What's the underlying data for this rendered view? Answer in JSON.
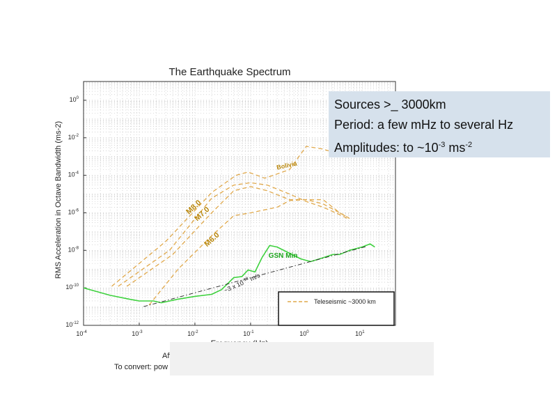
{
  "slide": {
    "callout": {
      "line1": "Sources >_ 3000km",
      "line2": "Period: a few mHz to several Hz",
      "line3_prefix": "Amplitudes:  to ~10",
      "line3_exp1": "-3",
      "line3_mid": " ms",
      "line3_exp2": "-2"
    },
    "note_line1": "Aft",
    "note_line2": "To convert: pow"
  },
  "chart_data": {
    "type": "line",
    "title": "The Earthquake Spectrum",
    "xlabel": "Frequency (Hz)",
    "ylabel": "RMS Acceleration in Octave Bandwidth (ms-2)",
    "x_scale": "log",
    "y_scale": "log",
    "xlim": [
      0.0001,
      40
    ],
    "ylim": [
      1e-12,
      10
    ],
    "x_ticks": [
      {
        "value": 0.0001,
        "base": "10",
        "exp": "-4"
      },
      {
        "value": 0.001,
        "base": "10",
        "exp": "-3"
      },
      {
        "value": 0.01,
        "base": "10",
        "exp": "-2"
      },
      {
        "value": 0.1,
        "base": "10",
        "exp": "-1"
      },
      {
        "value": 1,
        "base": "10",
        "exp": "0"
      },
      {
        "value": 10,
        "base": "10",
        "exp": "1"
      }
    ],
    "y_ticks": [
      {
        "value": 1,
        "base": "10",
        "exp": "0"
      },
      {
        "value": 0.01,
        "base": "10",
        "exp": "-2"
      },
      {
        "value": 0.0001,
        "base": "10",
        "exp": "-4"
      },
      {
        "value": 1e-06,
        "base": "10",
        "exp": "-6"
      },
      {
        "value": 1e-08,
        "base": "10",
        "exp": "-8"
      },
      {
        "value": 1e-10,
        "base": "10",
        "exp": "-10"
      },
      {
        "value": 1e-12,
        "base": "10",
        "exp": "-12"
      }
    ],
    "grid": true,
    "legend": {
      "placement": "bottom-right",
      "entries": [
        {
          "label": "Teleseismic ~3000 km",
          "color": "#e0a84a"
        }
      ]
    },
    "colors": {
      "teleseismic": "#e0a84a",
      "gsn": "#3dd13d",
      "reference": "#222222",
      "label_brown": "#b8860b",
      "label_green": "#1ea51e"
    },
    "series": [
      {
        "name": "Bolivia",
        "kind": "teleseismic",
        "points": [
          [
            0.00032,
            1.2e-10
          ],
          [
            0.003,
            3e-08
          ],
          [
            0.02,
            1.2e-05
          ],
          [
            0.055,
            0.0001
          ],
          [
            0.09,
            0.00015
          ],
          [
            0.18,
            7e-05
          ],
          [
            0.5,
            0.0002
          ],
          [
            1,
            0.0035
          ],
          [
            2,
            0.0025
          ],
          [
            4,
            0.0013
          ],
          [
            5,
            0.0011
          ]
        ]
      },
      {
        "name": "M8.0",
        "kind": "teleseismic",
        "points": [
          [
            0.00042,
            1.2e-10
          ],
          [
            0.0035,
            1e-08
          ],
          [
            0.02,
            6e-06
          ],
          [
            0.05,
            3e-05
          ],
          [
            0.1,
            4e-05
          ],
          [
            0.2,
            3e-05
          ],
          [
            0.5,
            1e-05
          ],
          [
            1,
            4e-06
          ],
          [
            2,
            2e-06
          ],
          [
            4,
            8e-07
          ],
          [
            5.5,
            5e-07
          ]
        ]
      },
      {
        "name": "M7.0",
        "kind": "teleseismic",
        "points": [
          [
            0.0006,
            1.2e-10
          ],
          [
            0.004,
            6e-09
          ],
          [
            0.02,
            1e-06
          ],
          [
            0.05,
            1.5e-05
          ],
          [
            0.1,
            2.5e-05
          ],
          [
            0.2,
            1.5e-05
          ],
          [
            0.5,
            5e-06
          ],
          [
            1,
            5e-06
          ],
          [
            2,
            3e-06
          ],
          [
            4,
            1e-06
          ],
          [
            6,
            5e-07
          ]
        ]
      },
      {
        "name": "M6.0",
        "kind": "teleseismic",
        "points": [
          [
            0.0015,
            1.2e-11
          ],
          [
            0.005,
            1e-09
          ],
          [
            0.02,
            6e-08
          ],
          [
            0.05,
            7e-07
          ],
          [
            0.1,
            1e-06
          ],
          [
            0.3,
            2e-06
          ],
          [
            0.5,
            4.5e-06
          ],
          [
            1,
            5e-06
          ],
          [
            2,
            5e-06
          ],
          [
            4,
            1e-06
          ],
          [
            5.5,
            6e-07
          ]
        ]
      },
      {
        "name": "GSN Min",
        "kind": "gsn",
        "points": [
          [
            0.0001,
            1e-10
          ],
          [
            0.0003,
            4e-11
          ],
          [
            0.0007,
            2.4e-11
          ],
          [
            0.001,
            2e-11
          ],
          [
            0.0018,
            2e-11
          ],
          [
            0.0025,
            1.6e-11
          ],
          [
            0.005,
            2.5e-11
          ],
          [
            0.01,
            3.5e-11
          ],
          [
            0.02,
            4.5e-11
          ],
          [
            0.03,
            8e-11
          ],
          [
            0.05,
            3.5e-10
          ],
          [
            0.07,
            4e-10
          ],
          [
            0.09,
            9e-10
          ],
          [
            0.12,
            7e-10
          ],
          [
            0.16,
            4e-09
          ],
          [
            0.22,
            1.8e-08
          ],
          [
            0.3,
            1.5e-08
          ],
          [
            0.5,
            7e-09
          ],
          [
            0.8,
            3.5e-09
          ],
          [
            1.2,
            2.5e-09
          ],
          [
            2,
            4e-09
          ],
          [
            3,
            6e-09
          ],
          [
            4,
            6e-09
          ],
          [
            6,
            1e-08
          ],
          [
            10,
            1.5e-08
          ],
          [
            14,
            2.2e-08
          ],
          [
            17,
            1.5e-08
          ]
        ]
      },
      {
        "name": "~3 x 10-10 m/s",
        "kind": "reference",
        "points": [
          [
            0.0012,
            1e-11
          ],
          [
            12,
            1.6e-08
          ]
        ]
      }
    ],
    "annotations": [
      {
        "text": "Bolivia",
        "kind": "teleseismic",
        "x": 0.3,
        "y": 0.0002,
        "angle": -12,
        "font": 9
      },
      {
        "text": "M8.0",
        "kind": "teleseismic",
        "x": 0.0078,
        "y": 8e-07,
        "angle": -42,
        "font": 11
      },
      {
        "text": "M7.0",
        "kind": "teleseismic",
        "x": 0.011,
        "y": 3.5e-07,
        "angle": -42,
        "font": 11
      },
      {
        "text": "M6.0",
        "kind": "teleseismic",
        "x": 0.0165,
        "y": 1.5e-08,
        "angle": -42,
        "font": 11
      },
      {
        "text": "GSN Min",
        "kind": "gsn",
        "x": 0.21,
        "y": 4e-09,
        "angle": 0,
        "font": 10
      },
      {
        "text": "~3 x 10",
        "kind": "reference",
        "x": 0.035,
        "y": 5.5e-11,
        "angle": -24,
        "font": 9,
        "sup": "-10",
        "suffix": " m/s"
      }
    ]
  }
}
